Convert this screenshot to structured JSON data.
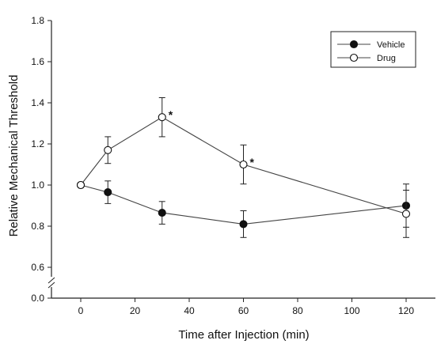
{
  "chart_data": {
    "type": "line",
    "xlabel": "Time after Injection (min)",
    "ylabel": "Relative Mechanical Threshold",
    "xlim": [
      -8,
      130
    ],
    "ylim": [
      0.0,
      1.8
    ],
    "y_axis_break": true,
    "x_ticks": [
      0,
      20,
      40,
      60,
      80,
      100,
      120
    ],
    "x_tick_labels": [
      "0",
      "20",
      "40",
      "60",
      "80",
      "100",
      "120"
    ],
    "y_ticks": [
      0.0,
      0.6,
      0.8,
      1.0,
      1.2,
      1.4,
      1.6,
      1.8
    ],
    "y_tick_labels": [
      "0.0",
      "0.6",
      "0.8",
      "1.0",
      "1.2",
      "1.4",
      "1.6",
      "1.8"
    ],
    "legend_position": "top-right",
    "grid": false,
    "series": [
      {
        "name": "Vehicle",
        "marker": "filled-circle",
        "x": [
          0,
          10,
          30,
          60,
          120
        ],
        "y": [
          1.0,
          0.965,
          0.865,
          0.81,
          0.9
        ],
        "error": [
          0.0,
          0.055,
          0.055,
          0.065,
          0.105
        ]
      },
      {
        "name": "Drug",
        "marker": "open-circle",
        "x": [
          0,
          10,
          30,
          60,
          120
        ],
        "y": [
          1.0,
          1.17,
          1.33,
          1.1,
          0.86
        ],
        "error": [
          0.0,
          0.065,
          0.095,
          0.095,
          0.115
        ]
      }
    ],
    "annotations": [
      {
        "text": "*",
        "x": 30,
        "y": 1.33
      },
      {
        "text": "*",
        "x": 60,
        "y": 1.1
      }
    ]
  }
}
